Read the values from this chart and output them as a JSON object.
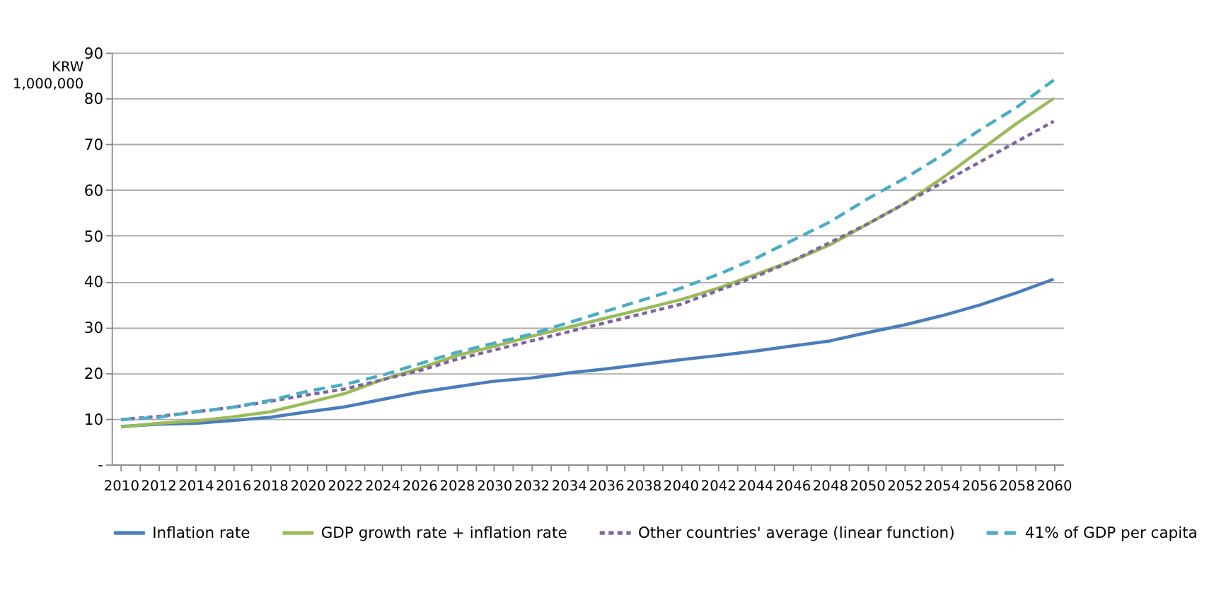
{
  "chart_data": {
    "type": "line",
    "ylabel": "KRW 1,000,000",
    "x": [
      2010,
      2012,
      2014,
      2016,
      2018,
      2020,
      2022,
      2024,
      2026,
      2028,
      2030,
      2032,
      2034,
      2036,
      2038,
      2040,
      2042,
      2044,
      2046,
      2048,
      2050,
      2052,
      2054,
      2056,
      2058,
      2060
    ],
    "xlim": [
      2009.5,
      2060.5
    ],
    "xticks": [
      2010,
      {
        "value": 2011,
        "label": null
      },
      2012,
      {
        "value": 2013,
        "label": null
      },
      2014,
      {
        "value": 2015,
        "label": null
      },
      2016,
      {
        "value": 2017,
        "label": null
      },
      2018,
      {
        "value": 2019,
        "label": null
      },
      2020,
      {
        "value": 2021,
        "label": null
      },
      2022,
      {
        "value": 2023,
        "label": null
      },
      2024,
      {
        "value": 2025,
        "label": null
      },
      2026,
      {
        "value": 2027,
        "label": null
      },
      2028,
      {
        "value": 2029,
        "label": null
      },
      2030,
      {
        "value": 2031,
        "label": null
      },
      2032,
      {
        "value": 2033,
        "label": null
      },
      2034,
      {
        "value": 2035,
        "label": null
      },
      2036,
      {
        "value": 2037,
        "label": null
      },
      2038,
      {
        "value": 2039,
        "label": null
      },
      2040,
      {
        "value": 2041,
        "label": null
      },
      2042,
      {
        "value": 2043,
        "label": null
      },
      2044,
      {
        "value": 2045,
        "label": null
      },
      2046,
      {
        "value": 2047,
        "label": null
      },
      2048,
      {
        "value": 2049,
        "label": null
      },
      2050,
      {
        "value": 2051,
        "label": null
      },
      2052,
      {
        "value": 2053,
        "label": null
      },
      2054,
      {
        "value": 2055,
        "label": null
      },
      2056,
      {
        "value": 2057,
        "label": null
      },
      2058,
      {
        "value": 2059,
        "label": null
      },
      2060
    ],
    "ylim": [
      0,
      90
    ],
    "yticks": [
      {
        "value": 0,
        "label": "-"
      },
      10,
      20,
      30,
      40,
      50,
      60,
      70,
      80,
      90
    ],
    "grid": "y",
    "legend": "bottom",
    "marker": "none",
    "series": [
      {
        "name": "Inflation rate",
        "color": "#4a7ebb",
        "line_style": "solid",
        "values": [
          8.3,
          8.8,
          9.0,
          9.6,
          10.3,
          11.5,
          12.6,
          14.2,
          15.8,
          17.0,
          18.2,
          18.9,
          20.0,
          20.9,
          21.9,
          22.9,
          23.8,
          24.8,
          25.9,
          27.0,
          28.8,
          30.5,
          32.5,
          34.8,
          37.5,
          40.5
        ]
      },
      {
        "name": "GDP growth rate + inflation rate",
        "color": "#9bbb59",
        "line_style": "solid",
        "values": [
          8.2,
          9.0,
          9.5,
          10.4,
          11.5,
          13.5,
          15.5,
          18.5,
          21.0,
          23.8,
          25.8,
          28.0,
          30.0,
          32.0,
          34.0,
          36.0,
          38.5,
          41.5,
          44.5,
          48.0,
          52.5,
          57.0,
          62.5,
          68.5,
          74.5,
          80.0
        ]
      },
      {
        "name": "Other countries' average (linear function)",
        "color": "#8064a2",
        "line_style": "dotted",
        "values": [
          9.8,
          10.5,
          11.5,
          12.5,
          13.8,
          15.2,
          16.5,
          18.5,
          20.5,
          23.0,
          25.0,
          27.0,
          29.0,
          31.0,
          33.0,
          35.0,
          38.0,
          41.0,
          44.5,
          48.5,
          52.5,
          57.0,
          61.5,
          66.0,
          70.5,
          75.0
        ]
      },
      {
        "name": "41% of GDP per capita",
        "color": "#4bacc6",
        "line_style": "dashed",
        "values": [
          9.8,
          10.3,
          11.5,
          12.5,
          14.0,
          16.0,
          17.5,
          19.5,
          22.0,
          24.5,
          26.5,
          28.5,
          31.0,
          33.5,
          36.0,
          38.5,
          41.5,
          45.0,
          49.0,
          53.0,
          58.0,
          62.5,
          67.5,
          73.0,
          78.0,
          84.0
        ]
      }
    ]
  }
}
